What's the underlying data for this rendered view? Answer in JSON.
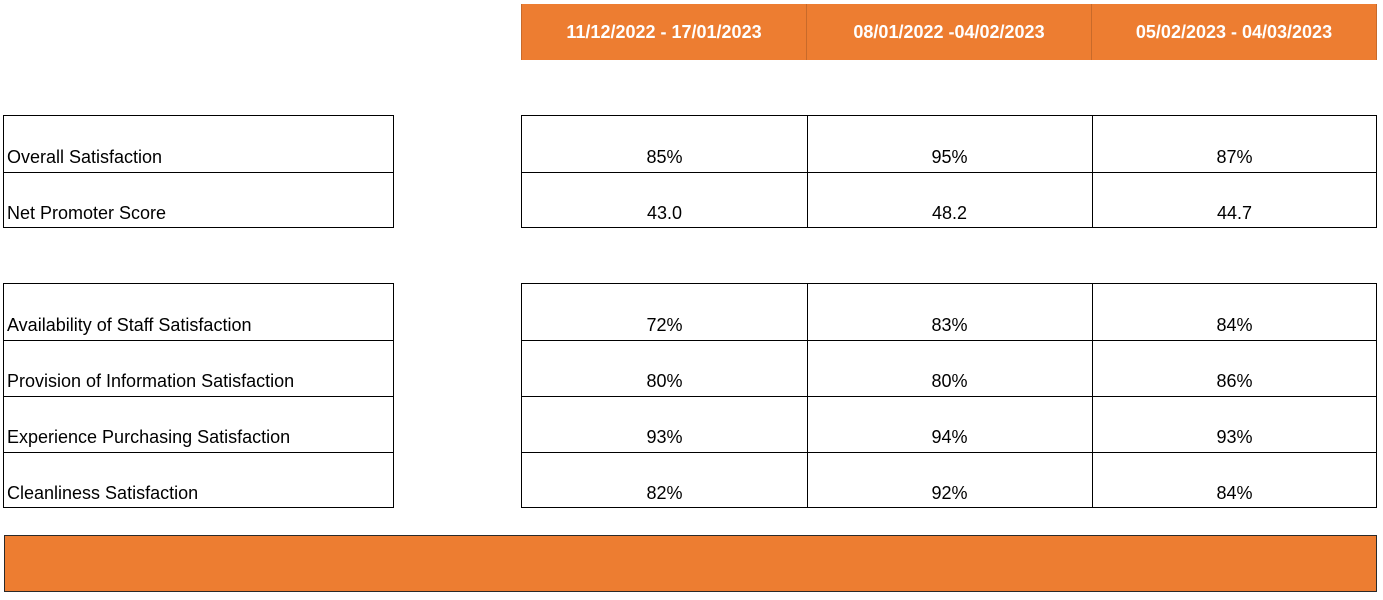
{
  "table": {
    "periods": [
      "11/12/2022 - 17/01/2023",
      "08/01/2022 -04/02/2023",
      "05/02/2023 - 04/03/2023"
    ],
    "group1": {
      "rows": [
        {
          "label": "Overall Satisfaction",
          "values": [
            "85%",
            "95%",
            "87%"
          ]
        },
        {
          "label": "Net Promoter Score",
          "values": [
            "43.0",
            "48.2",
            "44.7"
          ]
        }
      ]
    },
    "group2": {
      "rows": [
        {
          "label": "Availability of Staff Satisfaction",
          "values": [
            "72%",
            "83%",
            "84%"
          ]
        },
        {
          "label": "Provision of Information Satisfaction",
          "values": [
            "80%",
            "80%",
            "86%"
          ]
        },
        {
          "label": "Experience Purchasing Satisfaction",
          "values": [
            "93%",
            "94%",
            "93%"
          ]
        },
        {
          "label": "Cleanliness Satisfaction",
          "values": [
            "82%",
            "92%",
            "84%"
          ]
        }
      ]
    }
  },
  "colors": {
    "accent": "#ed7d31"
  }
}
